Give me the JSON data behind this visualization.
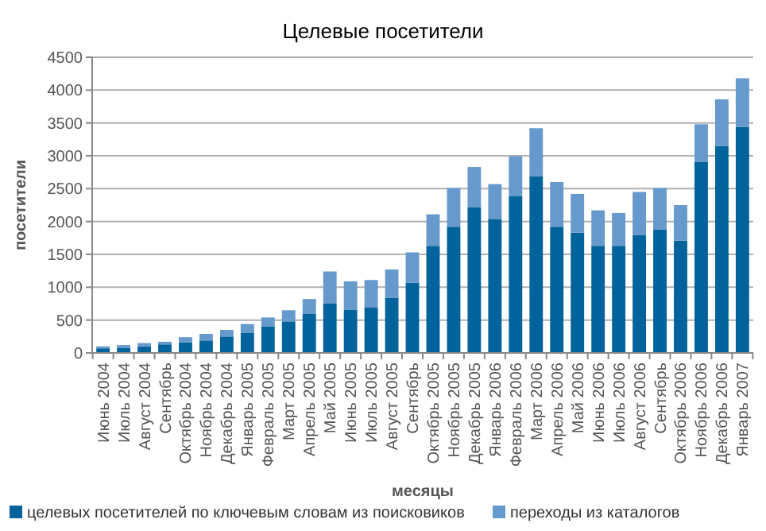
{
  "chart_data": {
    "type": "bar",
    "title": "Целевые посетители",
    "xlabel": "месяцы",
    "ylabel": "посетители",
    "stacked": true,
    "grid": "y",
    "legend": "bottom",
    "categories": [
      "Июнь 2004",
      "Июль 2004",
      "Август 2004",
      "Сентябрь",
      "Октябрь 2004",
      "Ноябрь 2004",
      "Декабрь 2004",
      "Январь 2005",
      "Февраль 2005",
      "Март 2005",
      "Апрель 2005",
      "Май 2005",
      "Июнь 2005",
      "Июль 2005",
      "Август 2005",
      "Сентябрь",
      "Октябрь 2005",
      "Ноябрь 2005",
      "Декабрь 2005",
      "Январь 2006",
      "Февраль 2006",
      "Март 2006",
      "Апрель 2006",
      "Май 2006",
      "Июнь 2006",
      "Июль 2006",
      "Август 2006",
      "Сентябрь",
      "Октябрь 2006",
      "Ноябрь 2006",
      "Декабрь 2006",
      "Январь 2007"
    ],
    "series": [
      {
        "name": "целевых посетителей по ключевым словам из поисковиков",
        "color": "#00639b",
        "values": [
          70,
          80,
          100,
          130,
          160,
          190,
          250,
          310,
          400,
          480,
          600,
          750,
          660,
          690,
          840,
          1070,
          1630,
          1920,
          2220,
          2040,
          2390,
          2690,
          1920,
          1830,
          1630,
          1630,
          1790,
          1880,
          1710,
          2910,
          3150,
          3440
        ]
      },
      {
        "name": "переходы из каталогов",
        "color": "#6699cc",
        "values": [
          30,
          40,
          50,
          40,
          80,
          100,
          100,
          130,
          140,
          170,
          220,
          490,
          430,
          420,
          430,
          460,
          480,
          590,
          610,
          530,
          600,
          730,
          680,
          590,
          540,
          500,
          660,
          630,
          540,
          570,
          710,
          740
        ]
      }
    ],
    "ylim": [
      0,
      4500
    ],
    "yticks": [
      0,
      500,
      1000,
      1500,
      2000,
      2500,
      3000,
      3500,
      4000,
      4500
    ]
  }
}
